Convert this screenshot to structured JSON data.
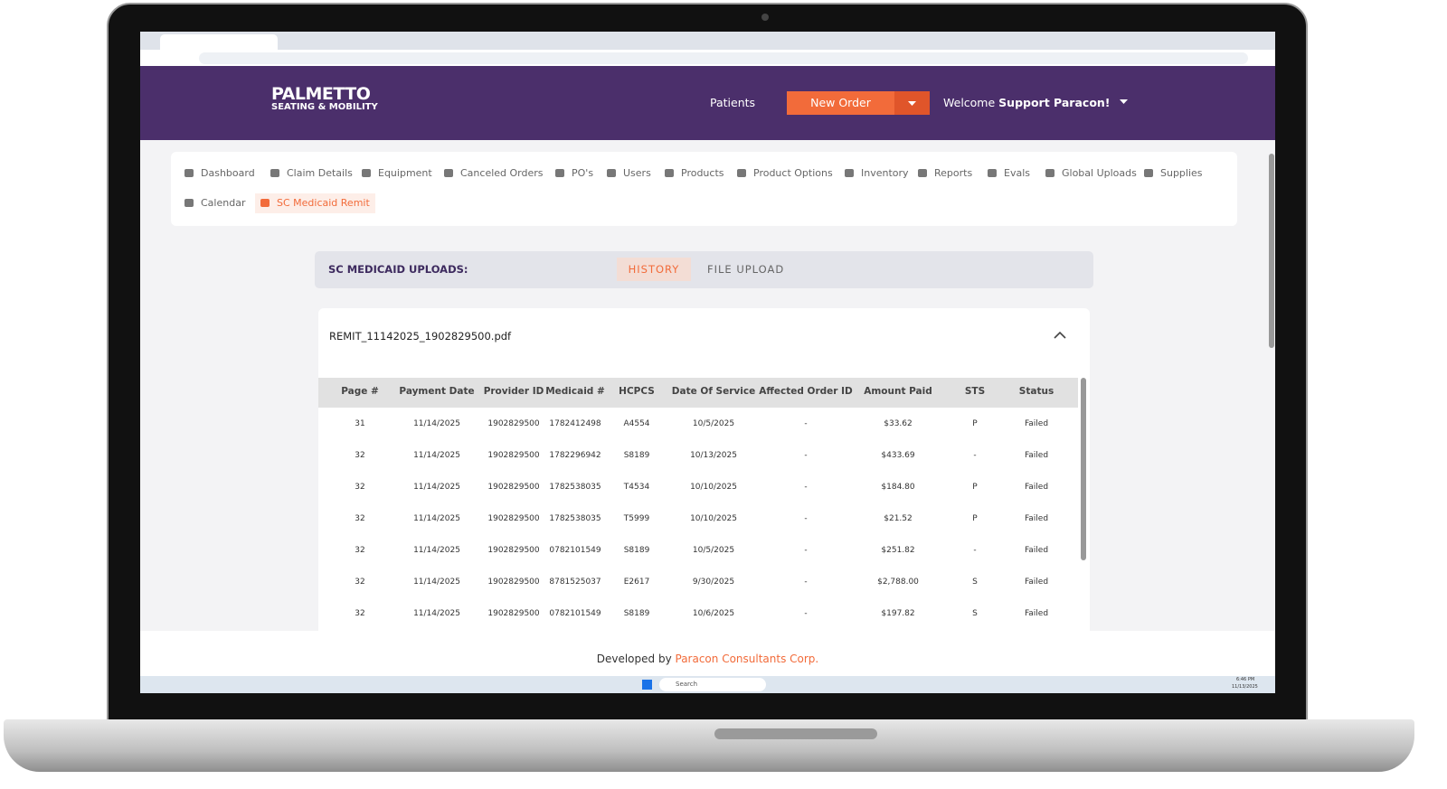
{
  "header": {
    "logo_line1": "PALMETTO",
    "logo_line2": "SEATING & MOBILITY",
    "patients": "Patients",
    "new_order": "New Order",
    "welcome": "Welcome",
    "user": "Support Paracon!"
  },
  "nav": {
    "items": [
      "Dashboard",
      "Claim Details",
      "Equipment",
      "Canceled Orders",
      "PO's",
      "Users",
      "Products",
      "Product Options",
      "Inventory",
      "Reports",
      "Evals",
      "Global Uploads",
      "Supplies",
      "Calendar",
      "SC Medicaid Remit"
    ]
  },
  "uploads": {
    "title": "SC MEDICAID UPLOADS:",
    "tabs": [
      "HISTORY",
      "FILE UPLOAD"
    ]
  },
  "file": {
    "name": "REMIT_11142025_1902829500.pdf"
  },
  "table": {
    "columns": [
      "Page #",
      "Payment Date",
      "Provider ID",
      "Medicaid #",
      "HCPCS",
      "Date Of Service",
      "Affected Order ID",
      "Amount Paid",
      "STS",
      "Status"
    ],
    "rows": [
      [
        "31",
        "11/14/2025",
        "1902829500",
        "1782412498",
        "A4554",
        "10/5/2025",
        "-",
        "$33.62",
        "P",
        "Failed"
      ],
      [
        "32",
        "11/14/2025",
        "1902829500",
        "1782296942",
        "S8189",
        "10/13/2025",
        "-",
        "$433.69",
        "-",
        "Failed"
      ],
      [
        "32",
        "11/14/2025",
        "1902829500",
        "1782538035",
        "T4534",
        "10/10/2025",
        "-",
        "$184.80",
        "P",
        "Failed"
      ],
      [
        "32",
        "11/14/2025",
        "1902829500",
        "1782538035",
        "T5999",
        "10/10/2025",
        "-",
        "$21.52",
        "P",
        "Failed"
      ],
      [
        "32",
        "11/14/2025",
        "1902829500",
        "0782101549",
        "S8189",
        "10/5/2025",
        "-",
        "$251.82",
        "-",
        "Failed"
      ],
      [
        "32",
        "11/14/2025",
        "1902829500",
        "8781525037",
        "E2617",
        "9/30/2025",
        "-",
        "$2,788.00",
        "S",
        "Failed"
      ],
      [
        "32",
        "11/14/2025",
        "1902829500",
        "0782101549",
        "S8189",
        "10/6/2025",
        "-",
        "$197.82",
        "S",
        "Failed"
      ]
    ]
  },
  "footer": {
    "prefix": "Developed by",
    "company": "Paracon Consultants Corp."
  },
  "taskbar": {
    "search": "Search",
    "time": "6:46 PM",
    "date": "11/13/2025"
  }
}
